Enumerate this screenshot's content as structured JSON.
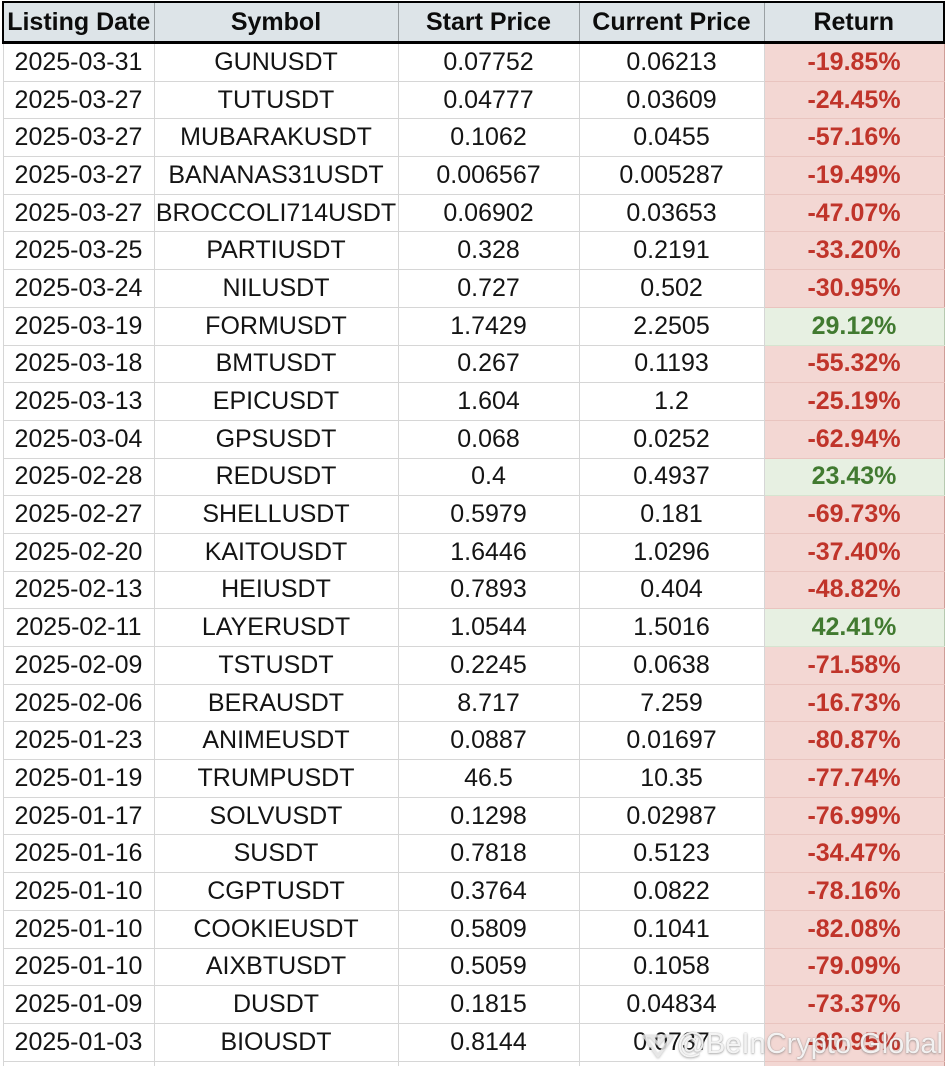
{
  "chart_data": {
    "type": "table",
    "columns": [
      "Listing Date",
      "Symbol",
      "Start Price",
      "Current Price",
      "Return"
    ],
    "rows": [
      {
        "date": "2025-03-31",
        "symbol": "GUNUSDT",
        "start_price": "0.07752",
        "current_price": "0.06213",
        "return": "-19.85%",
        "direction": "negative"
      },
      {
        "date": "2025-03-27",
        "symbol": "TUTUSDT",
        "start_price": "0.04777",
        "current_price": "0.03609",
        "return": "-24.45%",
        "direction": "negative"
      },
      {
        "date": "2025-03-27",
        "symbol": "MUBARAKUSDT",
        "start_price": "0.1062",
        "current_price": "0.0455",
        "return": "-57.16%",
        "direction": "negative"
      },
      {
        "date": "2025-03-27",
        "symbol": "BANANAS31USDT",
        "start_price": "0.006567",
        "current_price": "0.005287",
        "return": "-19.49%",
        "direction": "negative"
      },
      {
        "date": "2025-03-27",
        "symbol": "BROCCOLI714USDT",
        "start_price": "0.06902",
        "current_price": "0.03653",
        "return": "-47.07%",
        "direction": "negative"
      },
      {
        "date": "2025-03-25",
        "symbol": "PARTIUSDT",
        "start_price": "0.328",
        "current_price": "0.2191",
        "return": "-33.20%",
        "direction": "negative"
      },
      {
        "date": "2025-03-24",
        "symbol": "NILUSDT",
        "start_price": "0.727",
        "current_price": "0.502",
        "return": "-30.95%",
        "direction": "negative"
      },
      {
        "date": "2025-03-19",
        "symbol": "FORMUSDT",
        "start_price": "1.7429",
        "current_price": "2.2505",
        "return": "29.12%",
        "direction": "positive"
      },
      {
        "date": "2025-03-18",
        "symbol": "BMTUSDT",
        "start_price": "0.267",
        "current_price": "0.1193",
        "return": "-55.32%",
        "direction": "negative"
      },
      {
        "date": "2025-03-13",
        "symbol": "EPICUSDT",
        "start_price": "1.604",
        "current_price": "1.2",
        "return": "-25.19%",
        "direction": "negative"
      },
      {
        "date": "2025-03-04",
        "symbol": "GPSUSDT",
        "start_price": "0.068",
        "current_price": "0.0252",
        "return": "-62.94%",
        "direction": "negative"
      },
      {
        "date": "2025-02-28",
        "symbol": "REDUSDT",
        "start_price": "0.4",
        "current_price": "0.4937",
        "return": "23.43%",
        "direction": "positive"
      },
      {
        "date": "2025-02-27",
        "symbol": "SHELLUSDT",
        "start_price": "0.5979",
        "current_price": "0.181",
        "return": "-69.73%",
        "direction": "negative"
      },
      {
        "date": "2025-02-20",
        "symbol": "KAITOUSDT",
        "start_price": "1.6446",
        "current_price": "1.0296",
        "return": "-37.40%",
        "direction": "negative"
      },
      {
        "date": "2025-02-13",
        "symbol": "HEIUSDT",
        "start_price": "0.7893",
        "current_price": "0.404",
        "return": "-48.82%",
        "direction": "negative"
      },
      {
        "date": "2025-02-11",
        "symbol": "LAYERUSDT",
        "start_price": "1.0544",
        "current_price": "1.5016",
        "return": "42.41%",
        "direction": "positive"
      },
      {
        "date": "2025-02-09",
        "symbol": "TSTUSDT",
        "start_price": "0.2245",
        "current_price": "0.0638",
        "return": "-71.58%",
        "direction": "negative"
      },
      {
        "date": "2025-02-06",
        "symbol": "BERAUSDT",
        "start_price": "8.717",
        "current_price": "7.259",
        "return": "-16.73%",
        "direction": "negative"
      },
      {
        "date": "2025-01-23",
        "symbol": "ANIMEUSDT",
        "start_price": "0.0887",
        "current_price": "0.01697",
        "return": "-80.87%",
        "direction": "negative"
      },
      {
        "date": "2025-01-19",
        "symbol": "TRUMPUSDT",
        "start_price": "46.5",
        "current_price": "10.35",
        "return": "-77.74%",
        "direction": "negative"
      },
      {
        "date": "2025-01-17",
        "symbol": "SOLVUSDT",
        "start_price": "0.1298",
        "current_price": "0.02987",
        "return": "-76.99%",
        "direction": "negative"
      },
      {
        "date": "2025-01-16",
        "symbol": "SUSDT",
        "start_price": "0.7818",
        "current_price": "0.5123",
        "return": "-34.47%",
        "direction": "negative"
      },
      {
        "date": "2025-01-10",
        "symbol": "CGPTUSDT",
        "start_price": "0.3764",
        "current_price": "0.0822",
        "return": "-78.16%",
        "direction": "negative"
      },
      {
        "date": "2025-01-10",
        "symbol": "COOKIEUSDT",
        "start_price": "0.5809",
        "current_price": "0.1041",
        "return": "-82.08%",
        "direction": "negative"
      },
      {
        "date": "2025-01-10",
        "symbol": "AIXBTUSDT",
        "start_price": "0.5059",
        "current_price": "0.1058",
        "return": "-79.09%",
        "direction": "negative"
      },
      {
        "date": "2025-01-09",
        "symbol": "DUSDT",
        "start_price": "0.1815",
        "current_price": "0.04834",
        "return": "-73.37%",
        "direction": "negative"
      },
      {
        "date": "2025-01-03",
        "symbol": "BIOUSDT",
        "start_price": "0.8144",
        "current_price": "0.0737",
        "return": "-90.95%",
        "direction": "negative"
      }
    ]
  },
  "watermark": {
    "text": "@BeInCrypto Global"
  },
  "colors": {
    "header_bg": "#dde4e8",
    "negative_bg": "#f3d7d3",
    "negative_text": "#c0342a",
    "positive_bg": "#e7f0e2",
    "positive_text": "#417a30"
  }
}
